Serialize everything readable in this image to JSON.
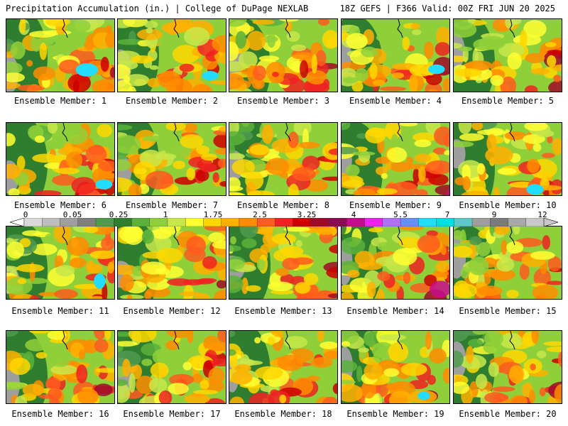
{
  "header": {
    "left": "Precipitation Accumulation (in.) | College of DuPage NEXLAB",
    "right": "18Z GEFS | F366 Valid: 00Z FRI JUN 20 2025"
  },
  "panels": [
    {
      "label": "Ensemble Member: 1"
    },
    {
      "label": "Ensemble Member: 2"
    },
    {
      "label": "Ensemble Member: 3"
    },
    {
      "label": "Ensemble Member: 4"
    },
    {
      "label": "Ensemble Member: 5"
    },
    {
      "label": "Ensemble Member: 6"
    },
    {
      "label": "Ensemble Member: 7"
    },
    {
      "label": "Ensemble Member: 8"
    },
    {
      "label": "Ensemble Member: 9"
    },
    {
      "label": "Ensemble Member: 10"
    },
    {
      "label": "Ensemble Member: 11"
    },
    {
      "label": "Ensemble Member: 12"
    },
    {
      "label": "Ensemble Member: 13"
    },
    {
      "label": "Ensemble Member: 14"
    },
    {
      "label": "Ensemble Member: 15"
    },
    {
      "label": "Ensemble Member: 16"
    },
    {
      "label": "Ensemble Member: 17"
    },
    {
      "label": "Ensemble Member: 18"
    },
    {
      "label": "Ensemble Member: 19"
    },
    {
      "label": "Ensemble Member: 20"
    }
  ],
  "colorbar": {
    "ticks": [
      "0",
      "0.05",
      "0.25",
      "1",
      "1.75",
      "2.5",
      "3.25",
      "4",
      "5.5",
      "7",
      "9",
      "12"
    ],
    "colors": [
      "#d9d9d9",
      "#bdbdbd",
      "#9e9e9e",
      "#808080",
      "#4f9a4f",
      "#2f7d2f",
      "#5bb13b",
      "#8fd03a",
      "#c8e84a",
      "#ffff33",
      "#ffd700",
      "#ffb000",
      "#ff8c00",
      "#ff5a1f",
      "#ee2222",
      "#cc0000",
      "#a00a2a",
      "#8b0a50",
      "#c80a8c",
      "#ee22ee",
      "#b070ff",
      "#6a8cff",
      "#22ddff",
      "#00e0e0",
      "#5fc8c8",
      "#9e9e9e",
      "#7a7a7a",
      "#a8a8a8",
      "#c8c8c8"
    ]
  }
}
